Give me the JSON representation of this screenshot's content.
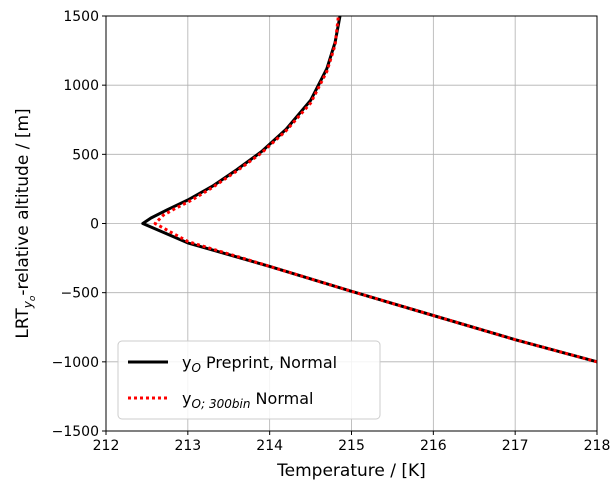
{
  "chart_data": {
    "type": "line",
    "xlabel": "Temperature  / [K]",
    "ylabel": {
      "prefix": "LRT",
      "subscript": "y",
      "subsubscript": "o",
      "suffix": "-relative altitude  / [m]"
    },
    "xlim": [
      212,
      218
    ],
    "ylim": [
      -1500,
      1500
    ],
    "xticks": [
      212,
      213,
      214,
      215,
      216,
      217,
      218
    ],
    "yticks": [
      -1500,
      -1000,
      -500,
      0,
      500,
      1000,
      1500
    ],
    "xtick_labels": [
      "212",
      "213",
      "214",
      "215",
      "216",
      "217",
      "218"
    ],
    "ytick_labels": [
      "−1500",
      "−1000",
      "−500",
      "0",
      "500",
      "1000",
      "1500"
    ],
    "grid": true,
    "legend": {
      "placement": "lower-left",
      "entries": [
        {
          "main": "y",
          "sub": "O",
          "sub_italic": true,
          "rest": " Preprint, Normal"
        },
        {
          "main": "y",
          "sub": "O; 300bin",
          "sub_italic": true,
          "rest": " Normal"
        }
      ]
    },
    "series": [
      {
        "name": "yO Preprint, Normal",
        "color": "#000000",
        "style": "solid",
        "x": [
          218.0,
          217.0,
          216.0,
          215.0,
          214.0,
          213.0,
          212.45,
          212.55,
          212.75,
          213.0,
          213.3,
          213.6,
          213.9,
          214.2,
          214.5,
          214.7,
          214.8,
          214.86
        ],
        "y": [
          -1000,
          -840,
          -665,
          -490,
          -310,
          -140,
          0,
          40,
          100,
          170,
          270,
          390,
          520,
          680,
          890,
          1120,
          1310,
          1500
        ]
      },
      {
        "name": "yO;300bin Normal",
        "color": "#ff0000",
        "style": "dotted",
        "x": [
          218.0,
          217.0,
          216.0,
          215.0,
          214.0,
          213.0,
          212.6,
          212.7,
          212.85,
          213.05,
          213.3,
          213.6,
          213.9,
          214.2,
          214.5,
          214.7,
          214.8,
          214.84
        ],
        "y": [
          -1000,
          -840,
          -665,
          -490,
          -310,
          -130,
          0,
          60,
          110,
          170,
          260,
          380,
          510,
          670,
          870,
          1100,
          1290,
          1500
        ]
      }
    ]
  }
}
